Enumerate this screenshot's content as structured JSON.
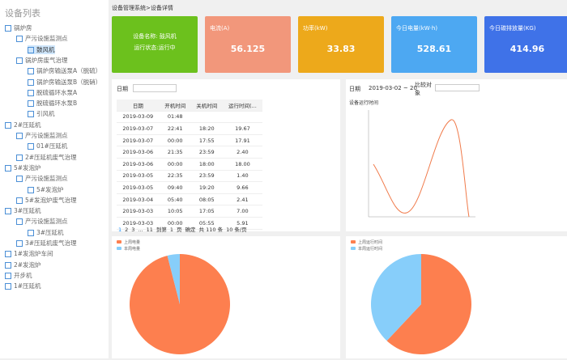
{
  "sidebar": {
    "title": "设备列表",
    "tree": [
      {
        "label": "锅炉房",
        "level": 0
      },
      {
        "label": "产污设施监测点",
        "level": 1
      },
      {
        "label": "鼓风机",
        "level": 2,
        "selected": true
      },
      {
        "label": "锅炉房废气治理",
        "level": 1
      },
      {
        "label": "锅炉房输送泵A（脱硫）",
        "level": 2
      },
      {
        "label": "锅炉房输送泵B（脱硝）",
        "level": 2
      },
      {
        "label": "脱硫循环水泵A",
        "level": 2
      },
      {
        "label": "脱硫循环水泵B",
        "level": 2
      },
      {
        "label": "引风机",
        "level": 2
      },
      {
        "label": "2#压延机",
        "level": 0
      },
      {
        "label": "产污设施监测点",
        "level": 1
      },
      {
        "label": "01#压延机",
        "level": 2
      },
      {
        "label": "2#压延机废气治理",
        "level": 1
      },
      {
        "label": "5#发泡炉",
        "level": 0
      },
      {
        "label": "产污设施监测点",
        "level": 1
      },
      {
        "label": "5#发泡炉",
        "level": 2
      },
      {
        "label": "5#发泡炉废气治理",
        "level": 1
      },
      {
        "label": "3#压延机",
        "level": 0
      },
      {
        "label": "产污设施监测点",
        "level": 1
      },
      {
        "label": "3#压延机",
        "level": 2
      },
      {
        "label": "3#压延机废气治理",
        "level": 1
      },
      {
        "label": "1#发泡炉车间",
        "level": 0
      },
      {
        "label": "2#发泡炉",
        "level": 0
      },
      {
        "label": "开步机",
        "level": 0
      },
      {
        "label": "1#压延机",
        "level": 0
      }
    ]
  },
  "breadcrumb": "设备管理系统>设备详情",
  "cards": [
    {
      "lines": [
        "设备名称: 鼓风机",
        "运行状态:运行中"
      ],
      "color": "#6cc11d"
    },
    {
      "title": "电流(A)",
      "value": "56.125",
      "color": "#f2977b"
    },
    {
      "title": "功率(kW)",
      "value": "33.83",
      "color": "#eda91b"
    },
    {
      "title": "今日电量(kW·h)",
      "value": "528.61",
      "color": "#4da8f2"
    },
    {
      "title": "今日碳排放量(KG)",
      "value": "414.96",
      "color": "#3f72e8"
    }
  ],
  "table": {
    "filter_label": "日期",
    "columns": [
      "日期",
      "开机时间",
      "关机时间",
      "运行时间(..."
    ],
    "rows": [
      [
        "2019-03-09",
        "01:48",
        "",
        ""
      ],
      [
        "2019-03-07",
        "22:41",
        "18:20",
        "19.67"
      ],
      [
        "2019-03-07",
        "00:00",
        "17:55",
        "17.91"
      ],
      [
        "2019-03-06",
        "21:35",
        "23:59",
        "2.40"
      ],
      [
        "2019-03-06",
        "00:00",
        "18:00",
        "18.00"
      ],
      [
        "2019-03-05",
        "22:35",
        "23:59",
        "1.40"
      ],
      [
        "2019-03-05",
        "09:40",
        "19:20",
        "9.66"
      ],
      [
        "2019-03-04",
        "05:40",
        "08:05",
        "2.41"
      ],
      [
        "2019-03-03",
        "10:05",
        "17:05",
        "7.00"
      ],
      [
        "2019-03-03",
        "00:00",
        "05:55",
        "5.91"
      ]
    ],
    "pagination": {
      "pages": [
        "1",
        "2",
        "3",
        "...",
        "11"
      ],
      "goto": "到第",
      "page": "1",
      "page_unit": "页",
      "confirm": "确定",
      "total": "共 110 条",
      "size": "10 条/页"
    }
  },
  "line_panel": {
    "date_label": "日期",
    "date_range": "2019-03-02 ~ 20",
    "compare_label": "比较对象",
    "chart_title": "设备运行时间"
  },
  "pies": [
    {
      "legend": [
        "上周电量",
        "本周电量"
      ],
      "colors": [
        "#fd7f4f",
        "#87cefa"
      ],
      "values": [
        96,
        4
      ]
    },
    {
      "legend": [
        "上周运行时间",
        "本周运行时间"
      ],
      "colors": [
        "#fd7f4f",
        "#87cefa"
      ],
      "values": [
        62,
        38
      ]
    }
  ]
}
